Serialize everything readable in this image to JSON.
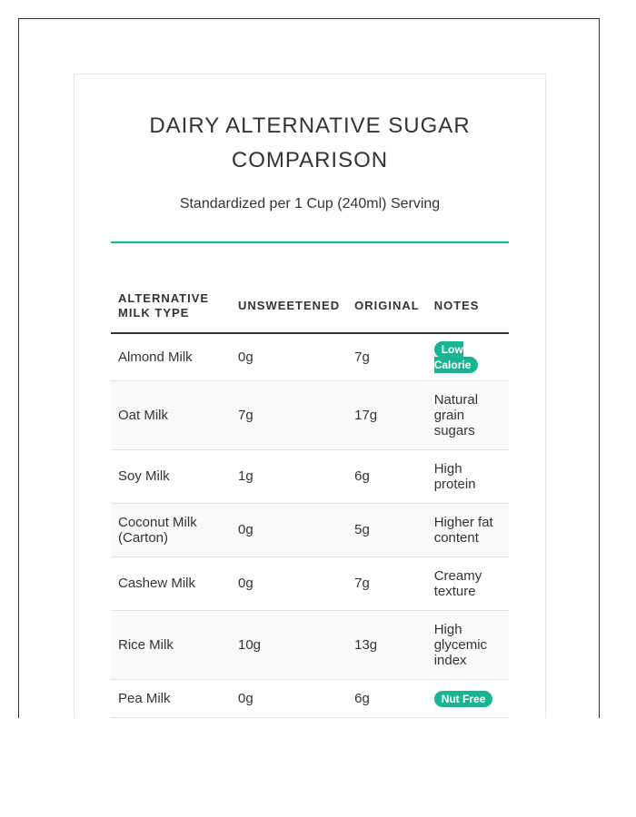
{
  "title": "DAIRY ALTERNATIVE SUGAR COMPARISON",
  "subtitle": "Standardized per 1 Cup (240ml) Serving",
  "accent_color": "#1ab394",
  "table": {
    "headers": [
      "ALTERNATIVE MILK TYPE",
      "UNSWEETENED",
      "ORIGINAL",
      "NOTES"
    ],
    "rows": [
      {
        "type": "Almond Milk",
        "unsweetened": "0g",
        "original": "7g",
        "notes": "Low Calorie",
        "badge": true
      },
      {
        "type": "Oat Milk",
        "unsweetened": "7g",
        "original": "17g",
        "notes": "Natural grain sugars",
        "badge": false
      },
      {
        "type": "Soy Milk",
        "unsweetened": "1g",
        "original": "6g",
        "notes": "High protein",
        "badge": false
      },
      {
        "type": "Coconut Milk (Carton)",
        "unsweetened": "0g",
        "original": "5g",
        "notes": "Higher fat content",
        "badge": false
      },
      {
        "type": "Cashew Milk",
        "unsweetened": "0g",
        "original": "7g",
        "notes": "Creamy texture",
        "badge": false
      },
      {
        "type": "Rice Milk",
        "unsweetened": "10g",
        "original": "13g",
        "notes": "High glycemic index",
        "badge": false
      },
      {
        "type": "Pea Milk",
        "unsweetened": "0g",
        "original": "6g",
        "notes": "Nut Free",
        "badge": true
      }
    ]
  }
}
